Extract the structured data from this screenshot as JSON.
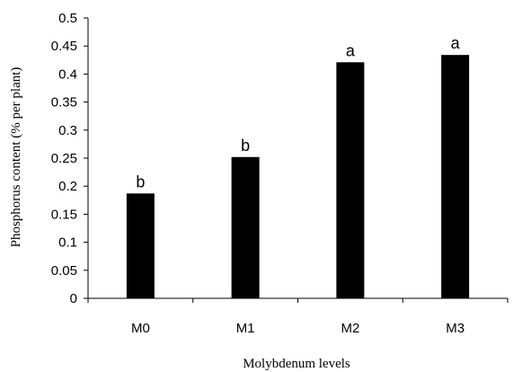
{
  "chart_data": {
    "type": "bar",
    "title": "",
    "xlabel": "Molybdenum levels",
    "ylabel": "Phosphorus content (% per plant)",
    "categories": [
      "M0",
      "M1",
      "M2",
      "M3"
    ],
    "values": [
      0.187,
      0.252,
      0.421,
      0.434
    ],
    "data_labels": [
      "b",
      "b",
      "a",
      "a"
    ],
    "ylim": [
      0,
      0.5
    ],
    "y_ticks": [
      "0",
      "0.05",
      "0.1",
      "0.15",
      "0.2",
      "0.25",
      "0.3",
      "0.35",
      "0.4",
      "0.45",
      "0.5"
    ],
    "grid": false,
    "legend": "none",
    "bar_color": "#000000",
    "axis_color": "#000000"
  }
}
